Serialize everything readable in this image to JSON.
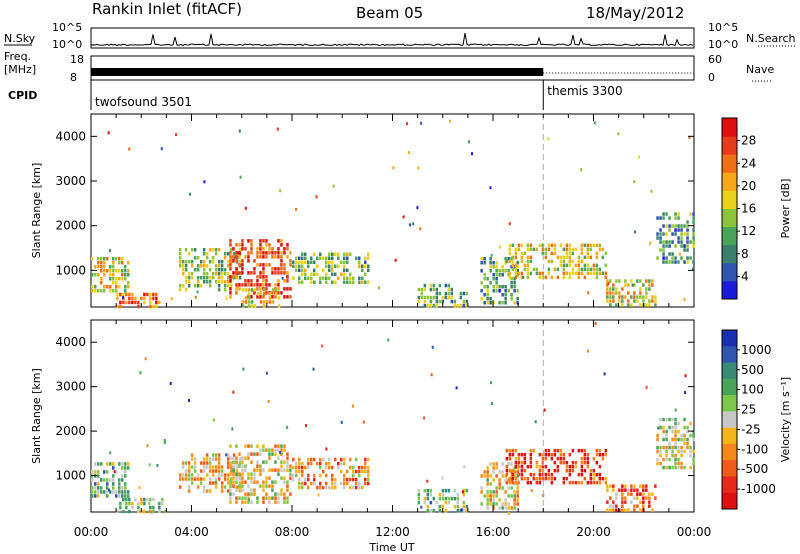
{
  "header": {
    "title": "Rankin Inlet (fitACF)",
    "beam": "Beam 05",
    "date": "18/May/2012"
  },
  "top_panels": {
    "nsky_label": "N.Sky",
    "nsky_ticks": [
      "10^5",
      "10^0"
    ],
    "nsearch_label": "N.Search",
    "nsearch_ticks": [
      "10^5",
      "10^0"
    ],
    "freq_label_1": "Freq.",
    "freq_label_2": "[MHz]",
    "freq_ticks": [
      "18",
      "8"
    ],
    "nave_label": "Nave",
    "nave_ticks": [
      "60",
      "0"
    ],
    "cpid_label": "CPID",
    "cpid_segments": [
      {
        "name": "twofsound 3501",
        "start_hour": 0,
        "end_hour": 18.0
      },
      {
        "name": "themis 3300",
        "start_hour": 18.0,
        "end_hour": 24
      }
    ]
  },
  "chart_data": [
    {
      "type": "heatmap",
      "name": "power",
      "ylabel": "Slant Range [km]",
      "ylim": [
        180,
        4500
      ],
      "yticks": [
        1000,
        2000,
        3000,
        4000
      ],
      "xlim": [
        0,
        24
      ],
      "x_ticks": [
        "00:00",
        "04:00",
        "08:00",
        "12:00",
        "16:00",
        "20:00",
        "00:00"
      ],
      "colorbar": {
        "label": "Power [dB]",
        "ticks": [
          "4",
          "8",
          "12",
          "16",
          "20",
          "24",
          "28"
        ],
        "colors": [
          "#1a1adb",
          "#2e55b0",
          "#3a7f6e",
          "#4aa35a",
          "#8cc43c",
          "#e8d21e",
          "#f5a81c",
          "#f0701a",
          "#e63c1a",
          "#dd1010"
        ]
      },
      "regions": [
        {
          "start_hour": 0.0,
          "end_hour": 1.5,
          "range_low": 500,
          "range_high": 1300,
          "level": 0.55
        },
        {
          "start_hour": 1.0,
          "end_hour": 3.0,
          "range_low": 180,
          "range_high": 500,
          "level": 0.75
        },
        {
          "start_hour": 3.5,
          "end_hour": 6.0,
          "range_low": 600,
          "range_high": 1500,
          "level": 0.45
        },
        {
          "start_hour": 5.5,
          "end_hour": 8.0,
          "range_low": 400,
          "range_high": 1700,
          "level": 0.85
        },
        {
          "start_hour": 6.0,
          "end_hour": 7.5,
          "range_low": 180,
          "range_high": 600,
          "level": 0.6
        },
        {
          "start_hour": 8.0,
          "end_hour": 11.0,
          "range_low": 700,
          "range_high": 1400,
          "level": 0.4
        },
        {
          "start_hour": 13.0,
          "end_hour": 15.0,
          "range_low": 180,
          "range_high": 700,
          "level": 0.35
        },
        {
          "start_hour": 15.5,
          "end_hour": 17.0,
          "range_low": 300,
          "range_high": 1300,
          "level": 0.3
        },
        {
          "start_hour": 16.5,
          "end_hour": 20.5,
          "range_low": 800,
          "range_high": 1600,
          "level": 0.55
        },
        {
          "start_hour": 20.5,
          "end_hour": 22.5,
          "range_low": 180,
          "range_high": 800,
          "level": 0.55
        },
        {
          "start_hour": 22.5,
          "end_hour": 24.0,
          "range_low": 1200,
          "range_high": 2300,
          "level": 0.3
        }
      ]
    },
    {
      "type": "heatmap",
      "name": "velocity",
      "ylabel": "Slant Range [km]",
      "ylim": [
        180,
        4500
      ],
      "yticks": [
        1000,
        2000,
        3000,
        4000
      ],
      "xlim": [
        0,
        24
      ],
      "xlabel": "Time UT",
      "x_ticks": [
        "00:00",
        "04:00",
        "08:00",
        "12:00",
        "16:00",
        "20:00",
        "00:00"
      ],
      "colorbar": {
        "label": "Velocity [m s⁻¹]",
        "ticks": [
          "1000",
          "500",
          "100",
          "25",
          "-25",
          "-100",
          "-500",
          "-1000"
        ],
        "colors": [
          "#1a2fb0",
          "#2e55b0",
          "#3a8a7a",
          "#4aa35a",
          "#7cc84a",
          "#c8c8c8",
          "#f5b41c",
          "#f5881c",
          "#f05a1a",
          "#e62a1a",
          "#dd0f10"
        ]
      },
      "regions": [
        {
          "start_hour": 0.0,
          "end_hour": 1.5,
          "range_low": 500,
          "range_high": 1300,
          "level": 0.35
        },
        {
          "start_hour": 1.0,
          "end_hour": 3.0,
          "range_low": 180,
          "range_high": 500,
          "level": 0.45
        },
        {
          "start_hour": 3.5,
          "end_hour": 6.0,
          "range_low": 600,
          "range_high": 1500,
          "level": 0.6
        },
        {
          "start_hour": 5.5,
          "end_hour": 8.0,
          "range_low": 400,
          "range_high": 1700,
          "level": 0.55
        },
        {
          "start_hour": 8.0,
          "end_hour": 11.0,
          "range_low": 700,
          "range_high": 1400,
          "level": 0.65
        },
        {
          "start_hour": 13.0,
          "end_hour": 15.0,
          "range_low": 180,
          "range_high": 700,
          "level": 0.4
        },
        {
          "start_hour": 15.5,
          "end_hour": 17.0,
          "range_low": 300,
          "range_high": 1300,
          "level": 0.55
        },
        {
          "start_hour": 16.5,
          "end_hour": 20.5,
          "range_low": 800,
          "range_high": 1600,
          "level": 0.85
        },
        {
          "start_hour": 20.5,
          "end_hour": 22.5,
          "range_low": 180,
          "range_high": 800,
          "level": 0.75
        },
        {
          "start_hour": 22.5,
          "end_hour": 24.0,
          "range_low": 1200,
          "range_high": 2300,
          "level": 0.5
        }
      ]
    }
  ]
}
